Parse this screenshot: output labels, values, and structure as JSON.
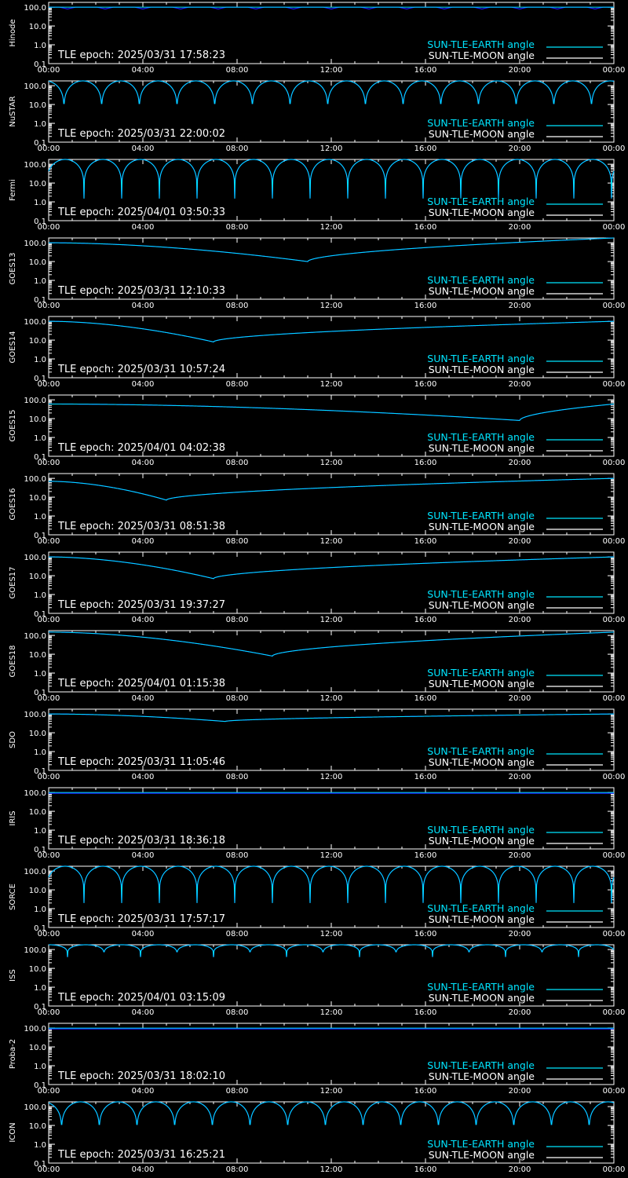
{
  "colors": {
    "background": "#000000",
    "axis": "#ffffff",
    "earth_series": "#00e5ff",
    "moon_series": "#1a1aff",
    "moon_legend": "#ffffff"
  },
  "legend": {
    "earth_label": "SUN-TLE-EARTH angle",
    "moon_label": "SUN-TLE-MOON angle"
  },
  "x_ticks": [
    "00:00",
    "04:00",
    "08:00",
    "12:00",
    "16:00",
    "20:00",
    "00:00"
  ],
  "y_ticks": [
    "100.0",
    "10.0",
    "1.0",
    "0.1"
  ],
  "chart_data": [
    {
      "type": "line",
      "ylabel": "Hinode",
      "xlim": [
        0,
        24
      ],
      "ylim": [
        0.1,
        180
      ],
      "yscale": "log",
      "annotation": "TLE epoch: 2025/03/31 17:58:23",
      "series": [
        {
          "name": "SUN-TLE-EARTH angle",
          "model": "flat",
          "level": 100
        },
        {
          "name": "SUN-TLE-MOON angle",
          "model": "dips",
          "level": 100,
          "min": 80,
          "period": 1.6,
          "phase": 0.8,
          "width": 0.35
        }
      ]
    },
    {
      "type": "line",
      "ylabel": "NuSTAR",
      "xlim": [
        0,
        24
      ],
      "ylim": [
        0.1,
        180
      ],
      "yscale": "log",
      "annotation": "TLE epoch: 2025/03/31 22:00:02",
      "series": [
        {
          "name": "SUN-TLE-EARTH angle",
          "model": "arches",
          "level": 180,
          "min": 1.5,
          "period": 1.6,
          "phase": 0.65
        },
        {
          "name": "SUN-TLE-MOON angle",
          "model": "arches",
          "level": 180,
          "min": 1.5,
          "period": 1.6,
          "phase": 0.65
        }
      ]
    },
    {
      "type": "line",
      "ylabel": "Fermi",
      "xlim": [
        0,
        24
      ],
      "ylim": [
        0.1,
        180
      ],
      "yscale": "log",
      "annotation": "TLE epoch: 2025/04/01 03:50:33",
      "series": [
        {
          "name": "SUN-TLE-EARTH angle",
          "model": "arches",
          "level": 180,
          "min": 1.5,
          "period": 1.6,
          "phase": 1.5
        },
        {
          "name": "SUN-TLE-MOON angle",
          "model": "arches",
          "level": 180,
          "min": 1.5,
          "period": 1.6,
          "phase": 1.5
        }
      ]
    },
    {
      "type": "line",
      "ylabel": "GOES13",
      "xlim": [
        0,
        24
      ],
      "ylim": [
        0.1,
        180
      ],
      "yscale": "log",
      "annotation": "TLE epoch: 2025/03/31 12:10:33",
      "series": [
        {
          "name": "SUN-TLE-EARTH angle",
          "model": "vdip",
          "center": 11,
          "min": 10,
          "left_start": 100,
          "right_end": 180
        },
        {
          "name": "SUN-TLE-MOON angle",
          "model": "vdip",
          "center": 11,
          "min": 10,
          "left_start": 100,
          "right_end": 180
        }
      ]
    },
    {
      "type": "line",
      "ylabel": "GOES14",
      "xlim": [
        0,
        24
      ],
      "ylim": [
        0.1,
        180
      ],
      "yscale": "log",
      "annotation": "TLE epoch: 2025/03/31 10:57:24",
      "series": [
        {
          "name": "SUN-TLE-EARTH angle",
          "model": "vdip",
          "center": 7,
          "min": 8,
          "left_start": 100,
          "right_end": 100
        },
        {
          "name": "SUN-TLE-MOON angle",
          "model": "vdip",
          "center": 7,
          "min": 8,
          "left_start": 100,
          "right_end": 100
        }
      ]
    },
    {
      "type": "line",
      "ylabel": "GOES15",
      "xlim": [
        0,
        24
      ],
      "ylim": [
        0.1,
        180
      ],
      "yscale": "log",
      "annotation": "TLE epoch: 2025/04/01 04:02:38",
      "series": [
        {
          "name": "SUN-TLE-EARTH angle",
          "model": "vdip",
          "center": 20,
          "min": 8,
          "left_start": 60,
          "right_end": 60
        },
        {
          "name": "SUN-TLE-MOON angle",
          "model": "vdip",
          "center": 20,
          "min": 8,
          "left_start": 60,
          "right_end": 60
        }
      ]
    },
    {
      "type": "line",
      "ylabel": "GOES16",
      "xlim": [
        0,
        24
      ],
      "ylim": [
        0.1,
        180
      ],
      "yscale": "log",
      "annotation": "TLE epoch: 2025/03/31 08:51:38",
      "series": [
        {
          "name": "SUN-TLE-EARTH angle",
          "model": "vdip",
          "center": 5,
          "min": 7,
          "left_start": 70,
          "right_end": 100
        },
        {
          "name": "SUN-TLE-MOON angle",
          "model": "vdip",
          "center": 5,
          "min": 7,
          "left_start": 70,
          "right_end": 100
        }
      ]
    },
    {
      "type": "line",
      "ylabel": "GOES17",
      "xlim": [
        0,
        24
      ],
      "ylim": [
        0.1,
        180
      ],
      "yscale": "log",
      "annotation": "TLE epoch: 2025/03/31 19:37:27",
      "series": [
        {
          "name": "SUN-TLE-EARTH angle",
          "model": "vdip",
          "center": 7,
          "min": 7,
          "left_start": 100,
          "right_end": 100
        },
        {
          "name": "SUN-TLE-MOON angle",
          "model": "vdip",
          "center": 7,
          "min": 7,
          "left_start": 100,
          "right_end": 100
        }
      ]
    },
    {
      "type": "line",
      "ylabel": "GOES18",
      "xlim": [
        0,
        24
      ],
      "ylim": [
        0.1,
        180
      ],
      "yscale": "log",
      "annotation": "TLE epoch: 2025/04/01 01:15:38",
      "series": [
        {
          "name": "SUN-TLE-EARTH angle",
          "model": "vdip",
          "center": 9.5,
          "min": 8,
          "left_start": 150,
          "right_end": 150
        },
        {
          "name": "SUN-TLE-MOON angle",
          "model": "vdip",
          "center": 9.5,
          "min": 8,
          "left_start": 150,
          "right_end": 150
        }
      ]
    },
    {
      "type": "line",
      "ylabel": "SDO",
      "xlim": [
        0,
        24
      ],
      "ylim": [
        0.1,
        180
      ],
      "yscale": "log",
      "annotation": "TLE epoch: 2025/03/31 11:05:46",
      "series": [
        {
          "name": "SUN-TLE-EARTH angle",
          "model": "vdip",
          "center": 7.5,
          "min": 40,
          "left_start": 100,
          "right_end": 100
        },
        {
          "name": "SUN-TLE-MOON angle",
          "model": "vdip",
          "center": 7.5,
          "min": 40,
          "left_start": 100,
          "right_end": 100
        }
      ]
    },
    {
      "type": "line",
      "ylabel": "IRIS",
      "xlim": [
        0,
        24
      ],
      "ylim": [
        0.1,
        180
      ],
      "yscale": "log",
      "annotation": "TLE epoch: 2025/03/31 18:36:18",
      "series": [
        {
          "name": "SUN-TLE-EARTH angle",
          "model": "flat",
          "level": 100
        },
        {
          "name": "SUN-TLE-MOON angle",
          "model": "flat",
          "level": 90
        }
      ]
    },
    {
      "type": "line",
      "ylabel": "SORCE",
      "xlim": [
        0,
        24
      ],
      "ylim": [
        0.1,
        180
      ],
      "yscale": "log",
      "annotation": "TLE epoch: 2025/03/31 17:57:17",
      "series": [
        {
          "name": "SUN-TLE-EARTH angle",
          "model": "arches",
          "level": 180,
          "min": 2,
          "period": 1.6,
          "phase": 1.5
        },
        {
          "name": "SUN-TLE-MOON angle",
          "model": "arches",
          "level": 180,
          "min": 2,
          "period": 1.6,
          "phase": 1.5
        }
      ]
    },
    {
      "type": "line",
      "ylabel": "ISS",
      "xlim": [
        0,
        24
      ],
      "ylim": [
        0.1,
        180
      ],
      "yscale": "log",
      "annotation": "TLE epoch: 2025/04/01 03:15:09",
      "series": [
        {
          "name": "SUN-TLE-EARTH angle",
          "model": "arches",
          "level": 180,
          "min": 40,
          "period": 1.55,
          "phase": 0.8
        },
        {
          "name": "SUN-TLE-MOON angle",
          "model": "arches",
          "level": 180,
          "min": 40,
          "period": 1.55,
          "phase": 0.8
        }
      ]
    },
    {
      "type": "line",
      "ylabel": "Proba-2",
      "xlim": [
        0,
        24
      ],
      "ylim": [
        0.1,
        180
      ],
      "yscale": "log",
      "annotation": "TLE epoch: 2025/03/31 18:02:10",
      "series": [
        {
          "name": "SUN-TLE-EARTH angle",
          "model": "flat",
          "level": 100
        },
        {
          "name": "SUN-TLE-MOON angle",
          "model": "flat",
          "level": 90
        }
      ]
    },
    {
      "type": "line",
      "ylabel": "ICON",
      "xlim": [
        0,
        24
      ],
      "ylim": [
        0.1,
        180
      ],
      "yscale": "log",
      "annotation": "TLE epoch: 2025/03/31 16:25:21",
      "series": [
        {
          "name": "SUN-TLE-EARTH angle",
          "model": "arches",
          "level": 180,
          "min": 1.5,
          "period": 1.6,
          "phase": 0.55
        },
        {
          "name": "SUN-TLE-MOON angle",
          "model": "arches",
          "level": 180,
          "min": 1.5,
          "period": 1.6,
          "phase": 0.55
        }
      ]
    }
  ]
}
